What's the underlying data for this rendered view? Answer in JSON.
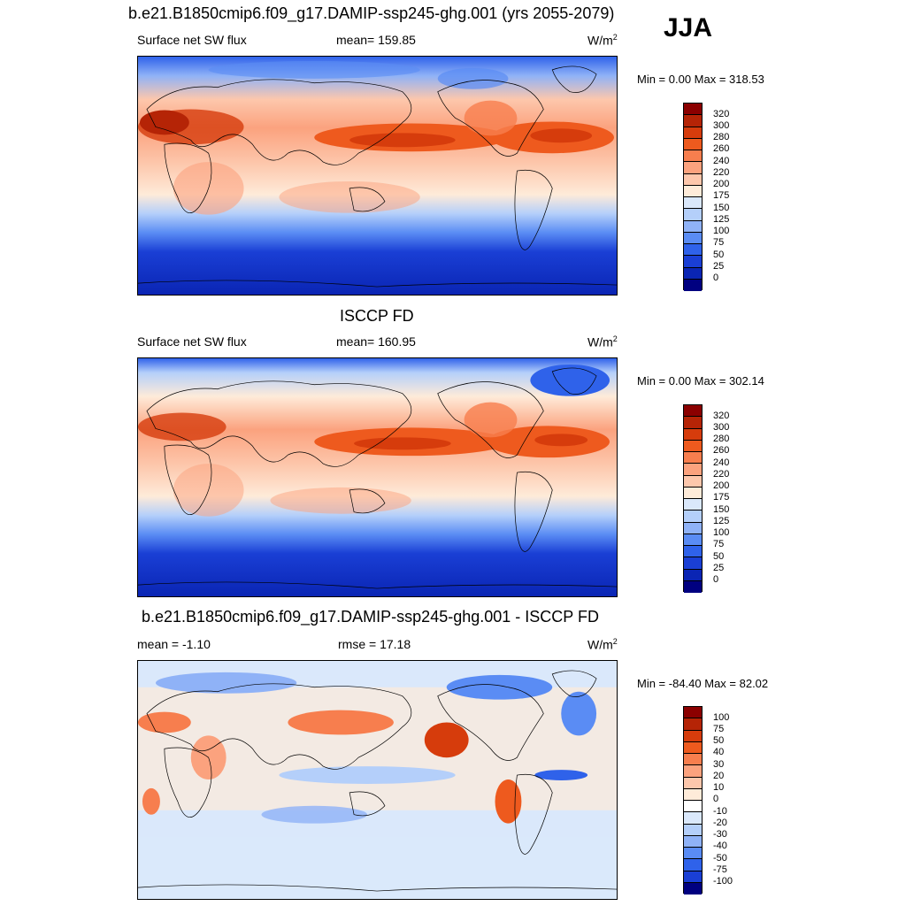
{
  "header": {
    "title": "b.e21.B1850cmip6.f09_g17.DAMIP-ssp245-ghg.001 (yrs 2055-2079)",
    "season": "JJA"
  },
  "panels": [
    {
      "title": "",
      "left_label": "Surface net SW flux",
      "center_label": "mean= 159.85",
      "units": "W/m",
      "units_sup": "2",
      "minmax": "Min =   0.00 Max = 318.53",
      "colorbar": {
        "labels": [
          "320",
          "300",
          "280",
          "260",
          "240",
          "220",
          "200",
          "175",
          "150",
          "125",
          "100",
          "75",
          "50",
          "25",
          "0"
        ],
        "colors": [
          "#8b0000",
          "#b52406",
          "#d63c0c",
          "#ee5a1e",
          "#f77e4e",
          "#fba27e",
          "#fdc7ac",
          "#feebd9",
          "#dae8fb",
          "#b4cffa",
          "#8fb2f7",
          "#5a8cf4",
          "#2f62ea",
          "#1a3fd5",
          "#0a25b4",
          "#000080"
        ]
      }
    },
    {
      "title": "ISCCP FD",
      "left_label": "Surface net SW flux",
      "center_label": "mean= 160.95",
      "units": "W/m",
      "units_sup": "2",
      "minmax": "Min =   0.00 Max = 302.14",
      "colorbar": {
        "labels": [
          "320",
          "300",
          "280",
          "260",
          "240",
          "220",
          "200",
          "175",
          "150",
          "125",
          "100",
          "75",
          "50",
          "25",
          "0"
        ],
        "colors": [
          "#8b0000",
          "#b52406",
          "#d63c0c",
          "#ee5a1e",
          "#f77e4e",
          "#fba27e",
          "#fdc7ac",
          "#feebd9",
          "#dae8fb",
          "#b4cffa",
          "#8fb2f7",
          "#5a8cf4",
          "#2f62ea",
          "#1a3fd5",
          "#0a25b4",
          "#000080"
        ]
      }
    },
    {
      "title": "b.e21.B1850cmip6.f09_g17.DAMIP-ssp245-ghg.001 - ISCCP FD",
      "left_label": "mean =  -1.10",
      "center_label": "rmse =  17.18",
      "units": "W/m",
      "units_sup": "2",
      "minmax": "Min = -84.40 Max =  82.02",
      "colorbar": {
        "labels": [
          "100",
          "75",
          "50",
          "40",
          "30",
          "20",
          "10",
          "0",
          "-10",
          "-20",
          "-30",
          "-40",
          "-50",
          "-75",
          "-100"
        ],
        "colors": [
          "#8b0000",
          "#b52406",
          "#d63c0c",
          "#ee5a1e",
          "#f77e4e",
          "#fba27e",
          "#fdc7ac",
          "#feebd9",
          "#ffffff",
          "#dae8fb",
          "#b4cffa",
          "#8fb2f7",
          "#5a8cf4",
          "#2f62ea",
          "#1a3fd5",
          "#000080"
        ]
      }
    }
  ]
}
